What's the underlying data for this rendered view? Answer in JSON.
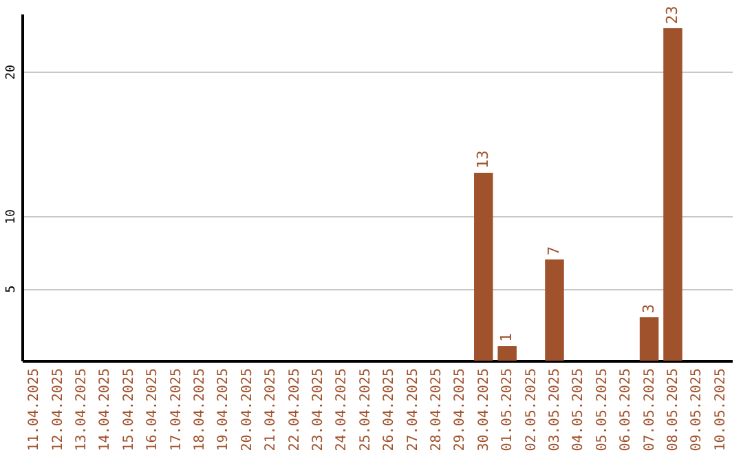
{
  "chart_data": {
    "type": "bar",
    "categories": [
      "11.04.2025",
      "12.04.2025",
      "13.04.2025",
      "14.04.2025",
      "15.04.2025",
      "16.04.2025",
      "17.04.2025",
      "18.04.2025",
      "19.04.2025",
      "20.04.2025",
      "21.04.2025",
      "22.04.2025",
      "23.04.2025",
      "24.04.2025",
      "25.04.2025",
      "26.04.2025",
      "27.04.2025",
      "28.04.2025",
      "29.04.2025",
      "30.04.2025",
      "01.05.2025",
      "02.05.2025",
      "03.05.2025",
      "04.05.2025",
      "05.05.2025",
      "06.05.2025",
      "07.05.2025",
      "08.05.2025",
      "09.05.2025",
      "10.05.2025"
    ],
    "values": [
      null,
      null,
      null,
      null,
      null,
      null,
      null,
      null,
      null,
      null,
      null,
      null,
      null,
      null,
      null,
      null,
      null,
      null,
      null,
      13,
      1,
      null,
      7,
      null,
      null,
      null,
      3,
      23,
      null,
      null
    ],
    "color": "#a0522d",
    "ylim": [
      0,
      24
    ],
    "yticks": [
      5,
      10,
      20
    ],
    "grid": true,
    "data_labels": true
  }
}
